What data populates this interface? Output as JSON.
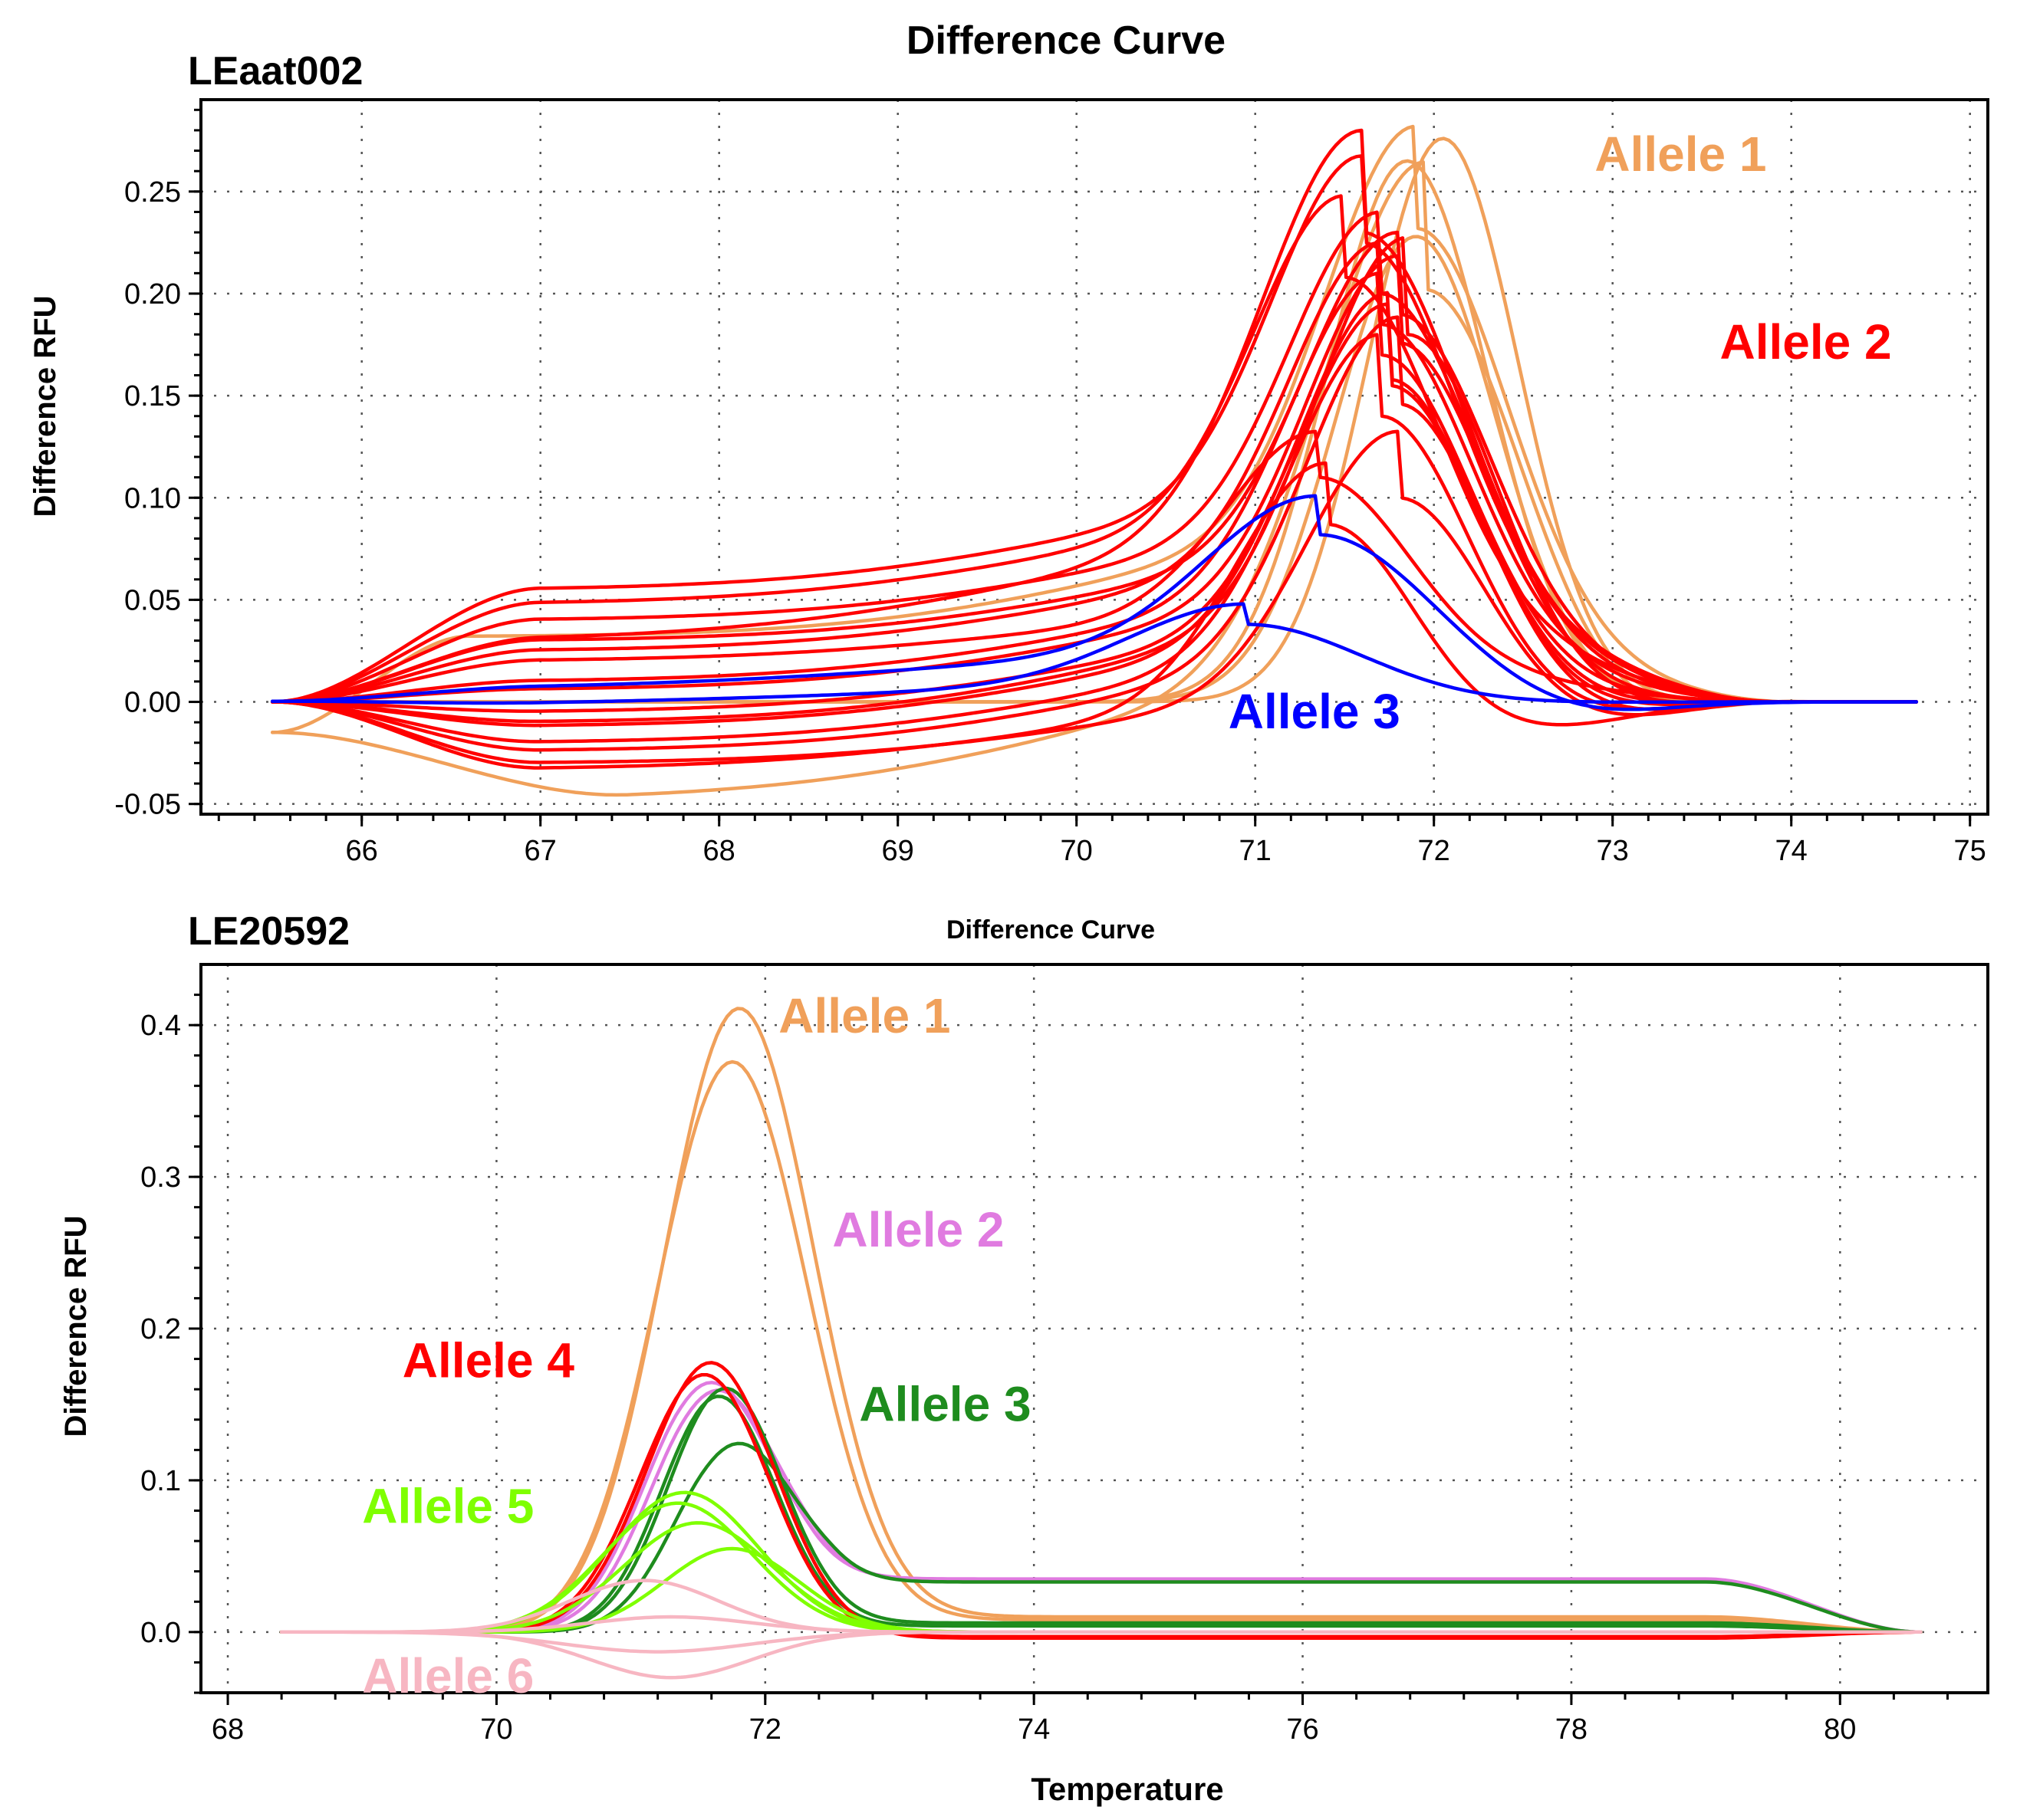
{
  "chart_data": [
    {
      "type": "line",
      "panel_label": "LEaat002",
      "title": "Difference Curve",
      "xlabel": "",
      "ylabel": "Difference RFU",
      "xlim": [
        65.1,
        75.1
      ],
      "ylim": [
        -0.055,
        0.295
      ],
      "x_ticks": [
        66,
        67,
        68,
        69,
        70,
        71,
        72,
        73,
        74,
        75
      ],
      "y_ticks": [
        -0.05,
        0.0,
        0.05,
        0.1,
        0.15,
        0.2,
        0.25
      ],
      "y_tick_labels": [
        "-0.05",
        "0.00",
        "0.05",
        "0.10",
        "0.15",
        "0.20",
        "0.25"
      ],
      "grid": true,
      "x_range": [
        65.5,
        74.7
      ],
      "series": [
        {
          "name": "Allele 1",
          "color": "#F0A05A",
          "label_x": 72.9,
          "label_y": 0.26,
          "curves": [
            {
              "start": 0.0,
              "end": 0.0,
              "peak": 0.276,
              "center": 72.05,
              "sigma": 0.42
            },
            {
              "start": 0.0,
              "end": 0.0,
              "peak": 0.265,
              "center": 71.85,
              "sigma": 0.45
            },
            {
              "start": 0.0,
              "end": 0.0,
              "peak": 0.228,
              "center": 71.9,
              "sigma": 0.45
            },
            {
              "start": -0.015,
              "end": 0.0,
              "plateau": 0.032,
              "plateau_center": 66.6,
              "peak": 0.2,
              "center": 71.9,
              "sigma": 0.5
            },
            {
              "start": -0.015,
              "end": 0.0,
              "plateau": -0.048,
              "plateau_center": 67.5,
              "peak": 0.25,
              "center": 71.95,
              "sigma": 0.55
            }
          ]
        },
        {
          "name": "Allele 2",
          "color": "#FF0000",
          "label_x": 73.6,
          "label_y": 0.168,
          "curves": [
            {
              "start": 0.0,
              "end": 0.0,
              "plateau": 0.055,
              "plateau_center": 67.0,
              "peak": 0.17,
              "center": 71.6,
              "sigma": 0.5
            },
            {
              "start": 0.0,
              "end": 0.0,
              "plateau": 0.048,
              "plateau_center": 67.0,
              "peak": 0.16,
              "center": 71.5,
              "sigma": 0.5
            },
            {
              "start": 0.0,
              "end": 0.0,
              "plateau": 0.04,
              "plateau_center": 67.0,
              "peak": 0.16,
              "center": 71.7,
              "sigma": 0.5
            },
            {
              "start": 0.0,
              "end": 0.0,
              "plateau": 0.03,
              "plateau_center": 67.0,
              "peak": 0.16,
              "center": 71.8,
              "sigma": 0.5
            },
            {
              "start": 0.0,
              "end": 0.0,
              "plateau": 0.025,
              "plateau_center": 67.0,
              "peak": 0.16,
              "center": 71.7,
              "sigma": 0.5
            },
            {
              "start": 0.0,
              "end": 0.0,
              "plateau": 0.01,
              "plateau_center": 67.0,
              "peak": 0.16,
              "center": 71.7,
              "sigma": 0.5
            },
            {
              "start": 0.0,
              "end": 0.0,
              "plateau": 0.006,
              "plateau_center": 67.0,
              "peak": 0.17,
              "center": 71.8,
              "sigma": 0.5
            },
            {
              "start": 0.0,
              "end": 0.0,
              "plateau": -0.005,
              "plateau_center": 67.0,
              "peak": 0.16,
              "center": 71.75,
              "sigma": 0.5
            },
            {
              "start": 0.0,
              "end": 0.0,
              "plateau": -0.012,
              "plateau_center": 67.0,
              "peak": 0.17,
              "center": 71.75,
              "sigma": 0.5
            },
            {
              "start": 0.0,
              "end": 0.0,
              "plateau": -0.02,
              "plateau_center": 67.0,
              "peak": 0.16,
              "center": 71.7,
              "sigma": 0.5
            },
            {
              "start": 0.0,
              "end": 0.0,
              "plateau": -0.024,
              "plateau_center": 67.0,
              "peak": 0.17,
              "center": 71.8,
              "sigma": 0.5
            },
            {
              "start": 0.0,
              "end": 0.0,
              "plateau": -0.03,
              "plateau_center": 67.0,
              "peak": 0.13,
              "center": 71.8,
              "sigma": 0.5
            },
            {
              "start": 0.0,
              "end": 0.0,
              "plateau": -0.033,
              "plateau_center": 67.0,
              "peak": 0.12,
              "center": 71.4,
              "sigma": 0.5
            },
            {
              "start": 0.0,
              "end": 0.0,
              "plateau": 0.02,
              "plateau_center": 67.0,
              "peak": 0.09,
              "center": 71.35,
              "sigma": 0.5
            },
            {
              "start": 0.0,
              "end": 0.0,
              "plateau": 0.03,
              "plateau_center": 67.0,
              "peak": 0.2,
              "center": 71.6,
              "sigma": 0.55
            },
            {
              "start": 0.0,
              "end": 0.0,
              "plateau": -0.01,
              "plateau_center": 67.0,
              "peak": 0.19,
              "center": 71.85,
              "sigma": 0.5
            }
          ]
        },
        {
          "name": "Allele 3",
          "color": "#0000FF",
          "label_x": 70.85,
          "label_y": -0.013,
          "curves": [
            {
              "start": 0.0,
              "end": 0.0,
              "plateau": 0.006,
              "plateau_center": 67.0,
              "peak": 0.076,
              "center": 71.35,
              "sigma": 0.62,
              "dip": -0.008,
              "dip_center": 72.8,
              "dip_sigma": 0.45
            },
            {
              "start": 0.0,
              "end": 0.0,
              "plateau": -0.002,
              "plateau_center": 67.0,
              "peak": 0.04,
              "center": 70.95,
              "sigma": 0.65
            }
          ]
        }
      ]
    },
    {
      "type": "line",
      "panel_label": "LE20592",
      "title": "Difference Curve",
      "xlabel": "Temperature",
      "ylabel": "Difference RFU",
      "xlim": [
        67.8,
        81.1
      ],
      "ylim": [
        -0.04,
        0.44
      ],
      "x_ticks": [
        68,
        70,
        72,
        74,
        76,
        78,
        80
      ],
      "y_ticks": [
        0.0,
        0.1,
        0.2,
        0.3,
        0.4
      ],
      "y_tick_labels": [
        "0.0",
        "0.1",
        "0.2",
        "0.3",
        "0.4"
      ],
      "grid": true,
      "x_range": [
        68.4,
        80.6
      ],
      "series": [
        {
          "name": "Allele 1",
          "color": "#F0A05A",
          "label_x": 72.1,
          "label_y": 0.395,
          "curves": [
            {
              "start": 0.0,
              "end": 0.0,
              "tail": 0.01,
              "peak": 0.41,
              "center": 71.8,
              "sigma": 0.55
            },
            {
              "start": 0.0,
              "end": 0.0,
              "tail": 0.008,
              "peak": 0.375,
              "center": 71.75,
              "sigma": 0.55
            }
          ]
        },
        {
          "name": "Allele 2",
          "color": "#E07BE0",
          "label_x": 72.5,
          "label_y": 0.254,
          "curves": [
            {
              "start": 0.0,
              "end": 0.0,
              "tail": 0.035,
              "peak": 0.16,
              "center": 71.55,
              "sigma": 0.45
            },
            {
              "start": 0.0,
              "end": 0.0,
              "tail": 0.034,
              "peak": 0.155,
              "center": 71.6,
              "sigma": 0.45
            }
          ]
        },
        {
          "name": "Allele 3",
          "color": "#1E8C1E",
          "label_x": 72.7,
          "label_y": 0.139,
          "curves": [
            {
              "start": 0.0,
              "end": 0.0,
              "tail": 0.006,
              "peak": 0.16,
              "center": 71.7,
              "sigma": 0.42
            },
            {
              "start": 0.0,
              "end": 0.0,
              "tail": 0.004,
              "peak": 0.155,
              "center": 71.65,
              "sigma": 0.42
            },
            {
              "start": 0.0,
              "end": 0.0,
              "tail": 0.033,
              "peak": 0.12,
              "center": 71.75,
              "sigma": 0.42
            }
          ]
        },
        {
          "name": "Allele 4",
          "color": "#FF0000",
          "label_x": 69.3,
          "label_y": 0.168,
          "curves": [
            {
              "start": 0.0,
              "end": 0.0,
              "tail": -0.004,
              "peak": 0.178,
              "center": 71.6,
              "sigma": 0.48
            },
            {
              "start": 0.0,
              "end": 0.0,
              "tail": -0.003,
              "peak": 0.17,
              "center": 71.55,
              "sigma": 0.48
            }
          ]
        },
        {
          "name": "Allele 5",
          "color": "#7FFF00",
          "label_x": 69.0,
          "label_y": 0.072,
          "curves": [
            {
              "start": 0.0,
              "end": 0.0,
              "tail": 0.0,
              "peak": 0.092,
              "center": 71.4,
              "sigma": 0.55
            },
            {
              "start": 0.0,
              "end": 0.0,
              "tail": 0.0,
              "peak": 0.085,
              "center": 71.35,
              "sigma": 0.55
            },
            {
              "start": 0.0,
              "end": 0.0,
              "tail": 0.0,
              "peak": 0.072,
              "center": 71.5,
              "sigma": 0.55
            },
            {
              "start": 0.0,
              "end": 0.0,
              "tail": 0.0,
              "peak": 0.055,
              "center": 71.75,
              "sigma": 0.5
            }
          ]
        },
        {
          "name": "Allele 6",
          "color": "#F7B6C2",
          "label_x": 69.0,
          "label_y": -0.04,
          "curves": [
            {
              "start": 0.0,
              "end": 0.0,
              "tail": 0.0,
              "peak": 0.034,
              "center": 71.1,
              "sigma": 0.55
            },
            {
              "start": 0.0,
              "end": 0.0,
              "tail": 0.0,
              "peak": 0.01,
              "center": 71.3,
              "sigma": 0.6
            },
            {
              "start": 0.0,
              "end": 0.0,
              "tail": 0.0,
              "peak": -0.013,
              "center": 71.2,
              "sigma": 0.7
            },
            {
              "start": 0.0,
              "end": 0.0,
              "tail": 0.0,
              "peak": -0.03,
              "center": 71.3,
              "sigma": 0.6
            }
          ]
        }
      ]
    }
  ]
}
